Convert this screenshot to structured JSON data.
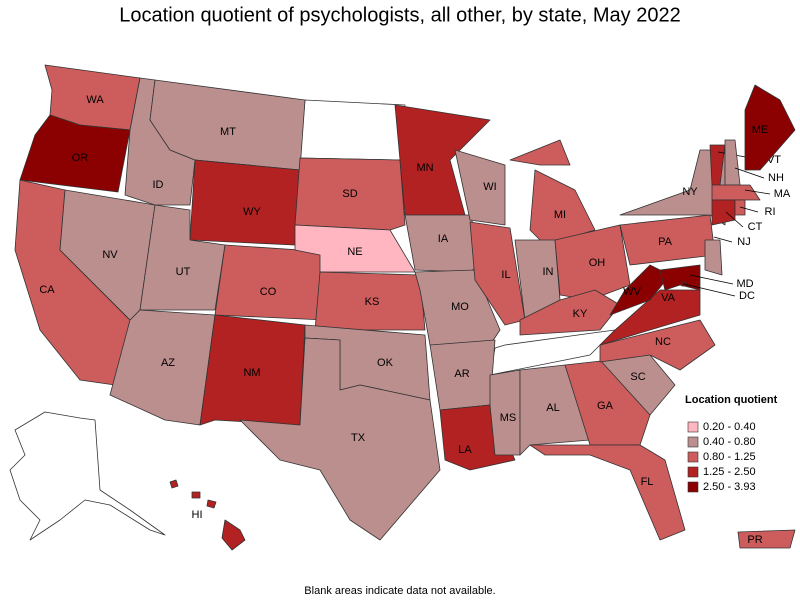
{
  "title": "Location quotient of psychologists, all other, by state, May 2022",
  "legend": {
    "title": "Location quotient",
    "items": [
      {
        "label": "0.20 - 0.40",
        "color": "#ffb6c1"
      },
      {
        "label": "0.40 - 0.80",
        "color": "#bc8f8f"
      },
      {
        "label": "0.80 - 1.25",
        "color": "#cd5c5c"
      },
      {
        "label": "1.25 - 2.50",
        "color": "#b22222"
      },
      {
        "label": "2.50 - 3.93",
        "color": "#8b0000"
      }
    ]
  },
  "states": [
    {
      "name": "WA",
      "color": "#cd5c5c"
    },
    {
      "name": "OR",
      "color": "#8b0000"
    },
    {
      "name": "CA",
      "color": "#cd5c5c"
    },
    {
      "name": "NV",
      "color": "#bc8f8f"
    },
    {
      "name": "ID",
      "color": "#bc8f8f"
    },
    {
      "name": "MT",
      "color": "#bc8f8f"
    },
    {
      "name": "WY",
      "color": "#b22222"
    },
    {
      "name": "UT",
      "color": "#bc8f8f"
    },
    {
      "name": "CO",
      "color": "#cd5c5c"
    },
    {
      "name": "AZ",
      "color": "#bc8f8f"
    },
    {
      "name": "NM",
      "color": "#b22222"
    },
    {
      "name": "SD",
      "color": "#cd5c5c"
    },
    {
      "name": "NE",
      "color": "#ffb6c1"
    },
    {
      "name": "KS",
      "color": "#cd5c5c"
    },
    {
      "name": "OK",
      "color": "#bc8f8f"
    },
    {
      "name": "TX",
      "color": "#bc8f8f"
    },
    {
      "name": "MN",
      "color": "#b22222"
    },
    {
      "name": "IA",
      "color": "#bc8f8f"
    },
    {
      "name": "MO",
      "color": "#bc8f8f"
    },
    {
      "name": "AR",
      "color": "#bc8f8f"
    },
    {
      "name": "LA",
      "color": "#b22222"
    },
    {
      "name": "WI",
      "color": "#bc8f8f"
    },
    {
      "name": "IL",
      "color": "#cd5c5c"
    },
    {
      "name": "MI",
      "color": "#cd5c5c"
    },
    {
      "name": "IN",
      "color": "#bc8f8f"
    },
    {
      "name": "OH",
      "color": "#cd5c5c"
    },
    {
      "name": "KY",
      "color": "#cd5c5c"
    },
    {
      "name": "MS",
      "color": "#bc8f8f"
    },
    {
      "name": "AL",
      "color": "#bc8f8f"
    },
    {
      "name": "GA",
      "color": "#cd5c5c"
    },
    {
      "name": "FL",
      "color": "#cd5c5c"
    },
    {
      "name": "SC",
      "color": "#bc8f8f"
    },
    {
      "name": "NC",
      "color": "#cd5c5c"
    },
    {
      "name": "VA",
      "color": "#b22222"
    },
    {
      "name": "WV",
      "color": "#8b0000"
    },
    {
      "name": "PA",
      "color": "#cd5c5c"
    },
    {
      "name": "NY",
      "color": "#bc8f8f"
    },
    {
      "name": "VT",
      "color": "#b22222"
    },
    {
      "name": "NH",
      "color": "#bc8f8f"
    },
    {
      "name": "ME",
      "color": "#8b0000"
    },
    {
      "name": "MA",
      "color": "#cd5c5c"
    },
    {
      "name": "CT",
      "color": "#b22222"
    },
    {
      "name": "RI",
      "color": "#cd5c5c"
    },
    {
      "name": "NJ",
      "color": "#bc8f8f"
    },
    {
      "name": "MD",
      "color": "#8b0000"
    },
    {
      "name": "DC",
      "color": "#8b0000"
    },
    {
      "name": "HI",
      "color": "#b22222"
    },
    {
      "name": "PR",
      "color": "#cd5c5c"
    }
  ],
  "footnote": "Blank areas indicate data not available."
}
